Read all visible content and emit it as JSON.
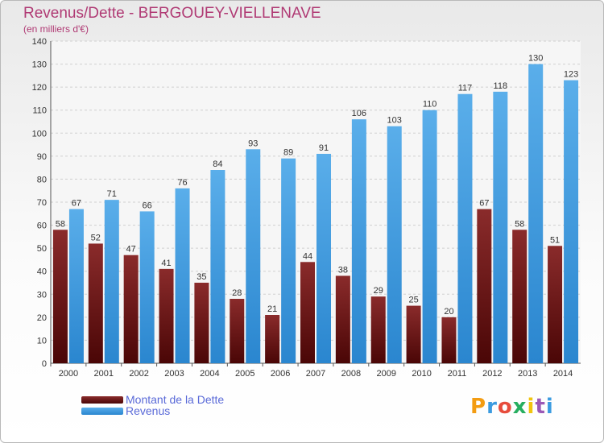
{
  "header": {
    "title": "Revenus/Dette - BERGOUEY-VIELLENAVE",
    "subtitle": "(en milliers d'€)"
  },
  "chart_data": {
    "type": "bar",
    "title": "Revenus/Dette - BERGOUEY-VIELLENAVE",
    "ylabel": "(en milliers d'€)",
    "xlabel": "",
    "categories": [
      "2000",
      "2001",
      "2002",
      "2003",
      "2004",
      "2005",
      "2006",
      "2007",
      "2008",
      "2009",
      "2010",
      "2011",
      "2012",
      "2013",
      "2014"
    ],
    "series": [
      {
        "name": "Montant de la Dette",
        "color": "#7a1c1c",
        "values": [
          58,
          52,
          47,
          41,
          35,
          28,
          21,
          44,
          38,
          29,
          25,
          20,
          67,
          58,
          51
        ]
      },
      {
        "name": "Revenus",
        "color": "#3b9be0",
        "values": [
          67,
          71,
          66,
          76,
          84,
          93,
          89,
          91,
          106,
          103,
          110,
          117,
          118,
          130,
          123
        ]
      }
    ],
    "ylim": [
      0,
      140
    ],
    "yticks": [
      0,
      10,
      20,
      30,
      40,
      50,
      60,
      70,
      80,
      90,
      100,
      110,
      120,
      130,
      140
    ],
    "grid": true,
    "legend_position": "bottom-left"
  },
  "legend": {
    "items": [
      {
        "label": "Montant de la Dette",
        "color": "#7a1c1c"
      },
      {
        "label": "Revenus",
        "color": "#3b9be0"
      }
    ]
  },
  "logo": {
    "text": "Proxiti",
    "letters": [
      "P",
      "r",
      "o",
      "x",
      "i",
      "t",
      "i"
    ],
    "colors": [
      "#f39c12",
      "#3b9be0",
      "#e74c3c",
      "#27ae60",
      "#f1c40f",
      "#9b59b6",
      "#3b9be0"
    ]
  }
}
